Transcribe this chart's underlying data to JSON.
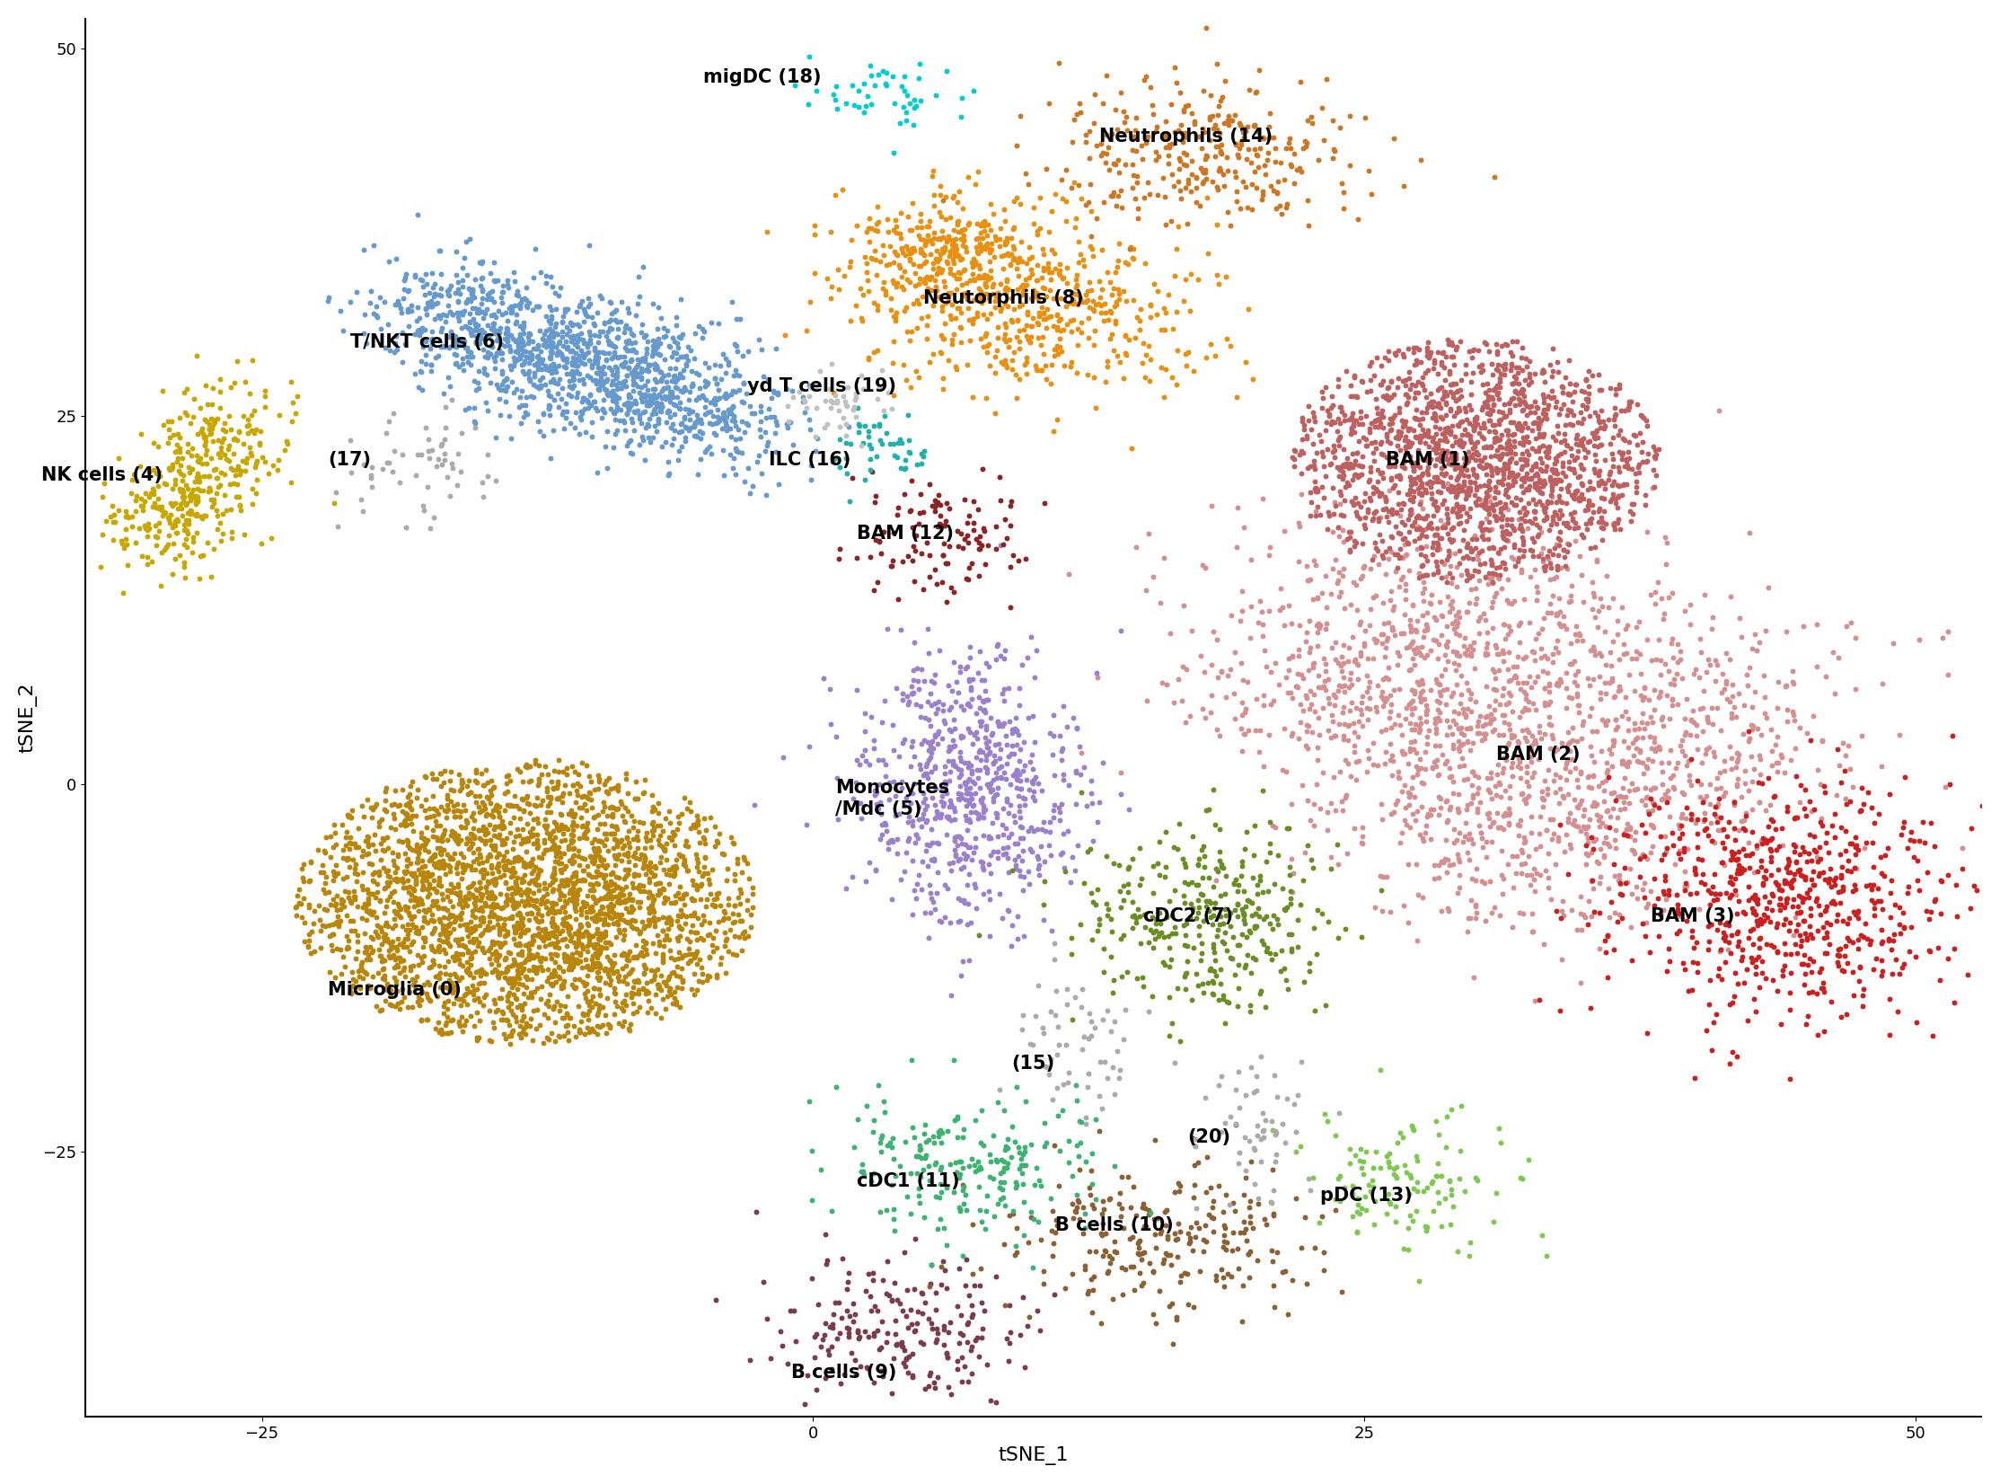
{
  "title": "",
  "xlabel": "tSNE_1",
  "ylabel": "tSNE_2",
  "xlim": [
    -33,
    53
  ],
  "ylim": [
    -43,
    52
  ],
  "xticks": [
    -25,
    0,
    25,
    50
  ],
  "yticks": [
    -25,
    0,
    25,
    50
  ],
  "background_color": "#ffffff",
  "point_size": 18,
  "alpha": 1.0,
  "label_fontsize": 15,
  "axis_fontsize": 16,
  "tick_fontsize": 13,
  "figsize": [
    22.27,
    16.52
  ],
  "dpi": 100,
  "colors": {
    "0": "#B8860B",
    "1": "#BC6060",
    "2": "#D49090",
    "3": "#CC2020",
    "4": "#C8A800",
    "5": "#9B80CC",
    "6": "#6699CC",
    "7": "#6B8E23",
    "8": "#E89010",
    "9": "#7B3B4A",
    "10": "#8B6033",
    "11": "#3CB371",
    "12": "#8B2525",
    "13": "#7EC850",
    "14": "#CC7722",
    "15": "#AAAAAA",
    "16": "#20B2AA",
    "17": "#AAAAAA",
    "18": "#00CED1",
    "19": "#C0C0C0",
    "20": "#AAAAAA"
  },
  "label_positions": {
    "0": [
      -22,
      -14,
      "Microglia (0)"
    ],
    "1": [
      26,
      22,
      "BAM (1)"
    ],
    "2": [
      31,
      2,
      "BAM (2)"
    ],
    "3": [
      38,
      -9,
      "BAM (3)"
    ],
    "4": [
      -35,
      21,
      "NK cells (4)"
    ],
    "5": [
      1,
      -1,
      "Monocytes\n/Mdc (5)"
    ],
    "6": [
      -21,
      30,
      "T/NKT cells (6)"
    ],
    "7": [
      15,
      -9,
      "cDC2 (7)"
    ],
    "8": [
      5,
      33,
      "Neutorphils (8)"
    ],
    "9": [
      -1,
      -40,
      "B cells (9)"
    ],
    "10": [
      11,
      -30,
      "B cells (10)"
    ],
    "11": [
      2,
      -27,
      "cDC1 (11)"
    ],
    "12": [
      2,
      17,
      "BAM (12)"
    ],
    "13": [
      23,
      -28,
      "pDC (13)"
    ],
    "14": [
      13,
      44,
      "Neutrophils (14)"
    ],
    "15": [
      9,
      -19,
      "(15)"
    ],
    "16": [
      -2,
      22,
      "ILC (16)"
    ],
    "17": [
      -22,
      22,
      "(17)"
    ],
    "18": [
      -5,
      48,
      "migDC (18)"
    ],
    "19": [
      -3,
      27,
      "yd T cells (19)"
    ],
    "20": [
      17,
      -24,
      "(20)"
    ]
  }
}
